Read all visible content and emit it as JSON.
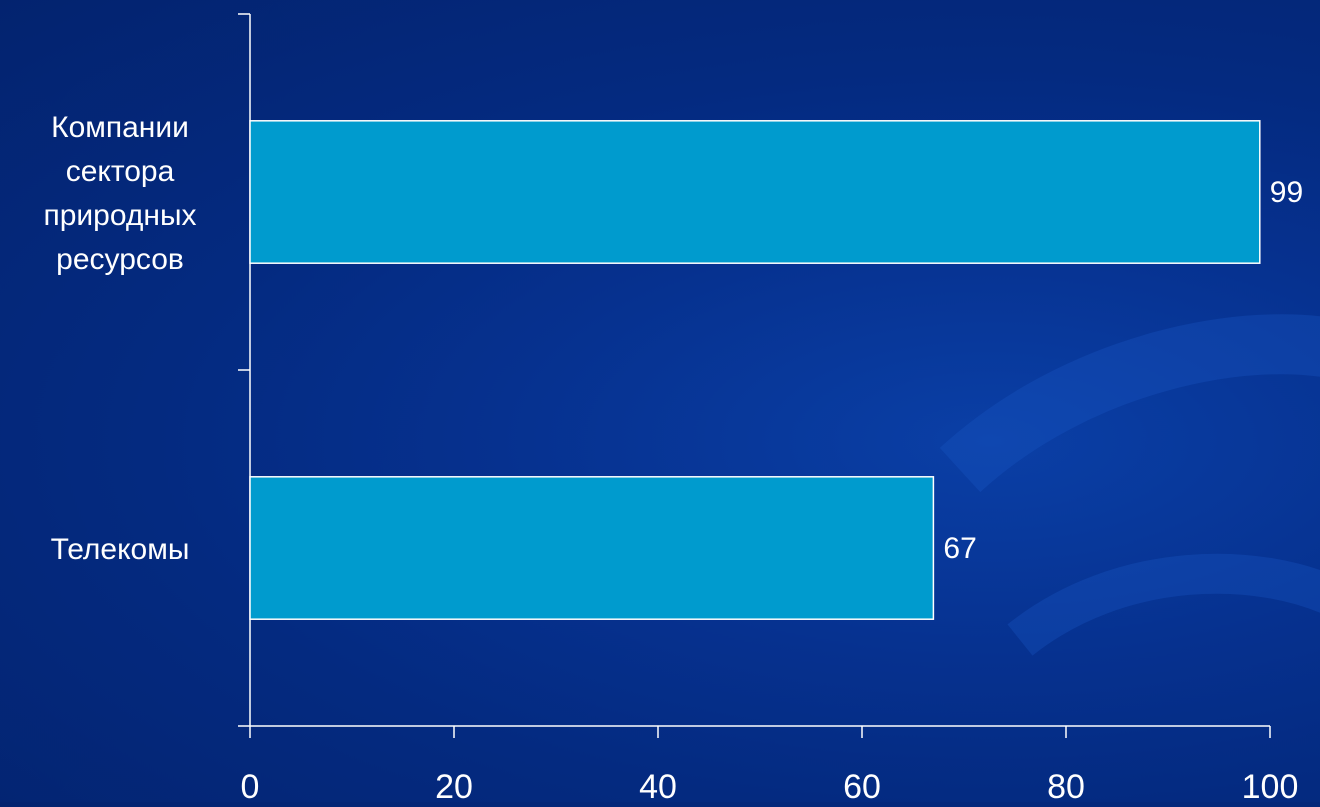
{
  "chart_data": {
    "type": "bar",
    "orientation": "horizontal",
    "title": "",
    "xlabel": "",
    "ylabel": "",
    "categories": [
      [
        "Компании",
        "сектора",
        "природных",
        "ресурсов"
      ],
      [
        "Телекомы"
      ]
    ],
    "values": [
      99,
      67
    ],
    "data_labels": [
      "99",
      "67"
    ],
    "xlim": [
      0,
      100
    ],
    "x_ticks": [
      0,
      20,
      40,
      60,
      80,
      100
    ],
    "x_tick_labels": [
      "0",
      "20",
      "40",
      "60",
      "80",
      "100"
    ],
    "grid": false,
    "legend": "none",
    "colors": {
      "bar_fill": "#009bce",
      "bar_stroke": "#ffffff",
      "axis": "#ffffff",
      "text": "#ffffff",
      "background": "#042a80"
    }
  }
}
